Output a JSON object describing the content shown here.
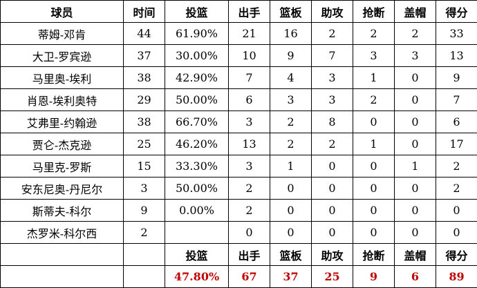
{
  "headers": [
    "球员",
    "时间",
    "投篮",
    "出手",
    "篮板",
    "助攻",
    "抢断",
    "盖帽",
    "得分"
  ],
  "rows": [
    [
      "蒂姆-邓肯",
      "44",
      "61.90%",
      "21",
      "16",
      "2",
      "2",
      "2",
      "33"
    ],
    [
      "大卫-罗宾逊",
      "37",
      "30.00%",
      "10",
      "9",
      "7",
      "3",
      "3",
      "13"
    ],
    [
      "马里奥-埃利",
      "38",
      "42.90%",
      "7",
      "4",
      "3",
      "1",
      "0",
      "9"
    ],
    [
      "肖恩-埃利奥特",
      "29",
      "50.00%",
      "6",
      "3",
      "3",
      "2",
      "0",
      "7"
    ],
    [
      "艾弗里-约翰逊",
      "38",
      "66.70%",
      "3",
      "2",
      "8",
      "0",
      "0",
      "6"
    ],
    [
      "贾仑-杰克逊",
      "25",
      "46.20%",
      "13",
      "2",
      "2",
      "1",
      "0",
      "17"
    ],
    [
      "马里克-罗斯",
      "15",
      "33.30%",
      "3",
      "1",
      "0",
      "0",
      "1",
      "2"
    ],
    [
      "安东尼奥-丹尼尔",
      "3",
      "50.00%",
      "2",
      "0",
      "0",
      "0",
      "0",
      "2"
    ],
    [
      "斯蒂夫-科尔",
      "9",
      "0.00%",
      "2",
      "0",
      "0",
      "0",
      "0",
      "0"
    ],
    [
      "杰罗米-科尔西",
      "2",
      "",
      "0",
      "0",
      "0",
      "0",
      "0",
      "0"
    ]
  ],
  "summary_headers": [
    "",
    "",
    "投篮",
    "出手",
    "篮板",
    "助攻",
    "抢断",
    "盖帽",
    "得分"
  ],
  "totals": [
    "",
    "",
    "47.80%",
    "67",
    "37",
    "25",
    "9",
    "6",
    "89"
  ],
  "colors": {
    "totals": "#c00000"
  }
}
